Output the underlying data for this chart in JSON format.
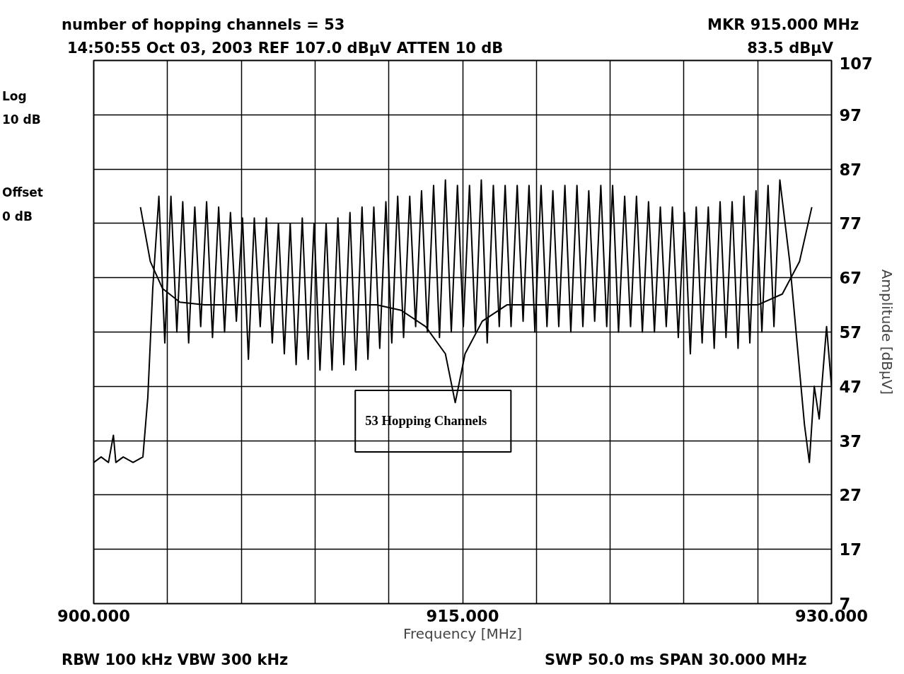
{
  "chart_data": {
    "type": "line",
    "title": "number of hopping channels = 53",
    "subtitle": "14:50:55 Oct 03, 2003   REF 107.0 dBµV        ATTEN 10  dB",
    "xlabel": "Frequency [MHz]",
    "ylabel": "Amplitude [dBµV]",
    "annotations": [
      "MKR  915.000 MHz",
      "83.5 dBµV",
      "Log",
      "10 dB",
      "Offset",
      "0 dB",
      "RBW 100 kHz  VBW 300 kHz",
      "SWP 50.0 ms  SPAN 30.000 MHz",
      "53 Hopping Channels"
    ],
    "xlim": [
      900,
      930
    ],
    "ylim": [
      7,
      107
    ],
    "xticks": [
      {
        "value": 900,
        "label": "900.000"
      },
      {
        "value": 903,
        "label": null
      },
      {
        "value": 906,
        "label": null
      },
      {
        "value": 909,
        "label": null
      },
      {
        "value": 912,
        "label": null
      },
      {
        "value": 915,
        "label": "915.000"
      },
      {
        "value": 918,
        "label": null
      },
      {
        "value": 921,
        "label": null
      },
      {
        "value": 924,
        "label": null
      },
      {
        "value": 927,
        "label": null
      },
      {
        "value": 930,
        "label": "930.000"
      }
    ],
    "yticks": [
      7,
      17,
      27,
      37,
      47,
      57,
      67,
      77,
      87,
      97,
      107
    ],
    "grid": true,
    "line_style": "solid",
    "marker": "none",
    "series": [
      {
        "color": "#000000",
        "x": [
          900.0,
          900.3,
          900.6,
          900.8,
          900.9,
          901.2,
          901.6,
          902.0,
          902.2,
          902.4,
          902.65,
          902.89,
          903.14,
          903.38,
          903.62,
          903.86,
          904.11,
          904.35,
          904.59,
          904.83,
          905.08,
          905.32,
          905.56,
          905.8,
          906.05,
          906.29,
          906.53,
          906.77,
          907.02,
          907.26,
          907.51,
          907.75,
          907.99,
          908.23,
          908.48,
          908.72,
          908.96,
          909.2,
          909.45,
          909.69,
          909.93,
          910.17,
          910.42,
          910.66,
          910.91,
          911.15,
          911.39,
          911.63,
          911.88,
          912.12,
          912.36,
          912.6,
          912.85,
          913.09,
          913.33,
          913.57,
          913.82,
          914.06,
          914.3,
          914.54,
          914.79,
          915.03,
          915.28,
          915.52,
          915.76,
          916.0,
          916.25,
          916.49,
          916.73,
          916.97,
          917.22,
          917.46,
          917.7,
          917.94,
          918.19,
          918.43,
          918.67,
          918.91,
          919.16,
          919.4,
          919.65,
          919.89,
          920.13,
          920.37,
          920.62,
          920.86,
          921.1,
          921.34,
          921.59,
          921.83,
          922.07,
          922.31,
          922.56,
          922.8,
          923.04,
          923.28,
          923.53,
          923.77,
          924.02,
          924.26,
          924.5,
          924.74,
          924.99,
          925.23,
          925.47,
          925.71,
          925.96,
          926.2,
          926.44,
          926.68,
          926.93,
          927.17,
          927.42,
          927.66,
          927.9,
          928.3,
          928.6,
          928.9,
          929.1,
          929.3,
          929.5,
          929.8,
          930.0
        ],
        "values": [
          33,
          34,
          33,
          38,
          33,
          34,
          33,
          34,
          45,
          65,
          82,
          55,
          82,
          57,
          81,
          55,
          80,
          58,
          81,
          56,
          80,
          57,
          79,
          59,
          78,
          52,
          78,
          58,
          78,
          55,
          77,
          53,
          77,
          51,
          78,
          52,
          77,
          50,
          77,
          50,
          78,
          51,
          79,
          50,
          80,
          52,
          80,
          54,
          81,
          55,
          82,
          56,
          82,
          58,
          83,
          57,
          84,
          56,
          85,
          57,
          84,
          58,
          84,
          57,
          85,
          55,
          84,
          58,
          84,
          58,
          84,
          59,
          84,
          57,
          84,
          58,
          83,
          58,
          84,
          57,
          84,
          58,
          83,
          59,
          84,
          58,
          84,
          57,
          82,
          58,
          82,
          57,
          81,
          57,
          80,
          58,
          80,
          56,
          79,
          53,
          80,
          55,
          80,
          54,
          81,
          56,
          81,
          54,
          82,
          55,
          83,
          57,
          84,
          58,
          85,
          70,
          55,
          40,
          33,
          47,
          41,
          58,
          47
        ]
      },
      {
        "color": "#000000",
        "x": [
          901.9,
          902.3,
          902.8,
          903.5,
          904.5,
          911.5,
          912.5,
          913.5,
          914.3,
          914.7,
          915.1,
          915.8,
          916.8,
          927.0,
          928.0,
          928.7,
          929.2
        ],
        "values": [
          80,
          70,
          65,
          62.5,
          62,
          62,
          61,
          58,
          53,
          44,
          53,
          59,
          62,
          62,
          64,
          70,
          80
        ]
      }
    ]
  }
}
